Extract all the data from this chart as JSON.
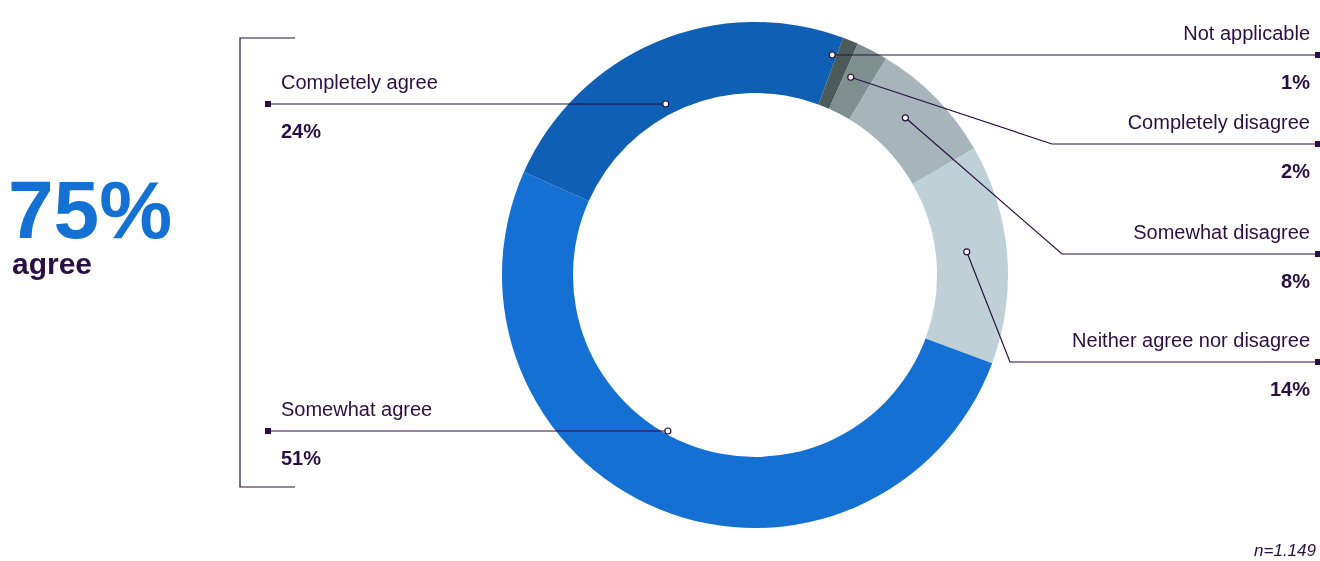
{
  "chart_data": {
    "type": "donut",
    "categories": [
      "Completely agree",
      "Not applicable",
      "Completely disagree",
      "Somewhat disagree",
      "Neither agree nor disagree",
      "Somewhat agree"
    ],
    "values": [
      24,
      1,
      2,
      8,
      14,
      51
    ],
    "value_labels": [
      "24%",
      "1%",
      "2%",
      "8%",
      "14%",
      "51%"
    ],
    "colors": [
      "#0f5fb5",
      "#4d5a5a",
      "#7f8f90",
      "#a7b4b9",
      "#bfd0d6",
      "#1570d3"
    ],
    "annotations": [
      "75%",
      "agree",
      "n=1.149"
    ]
  }
}
